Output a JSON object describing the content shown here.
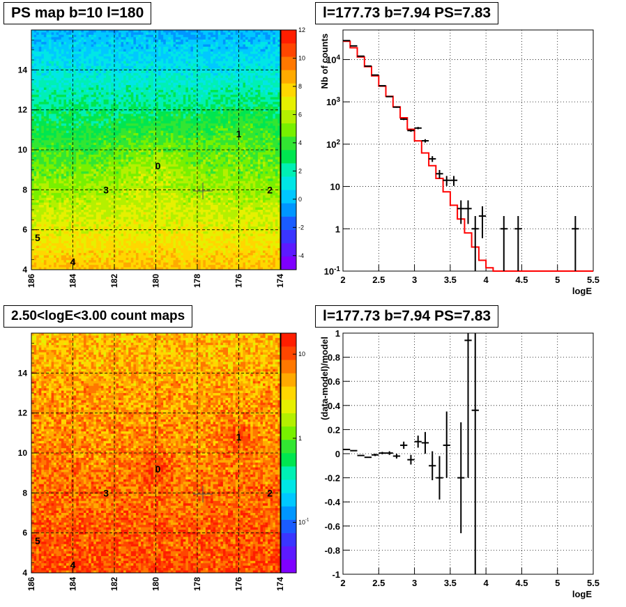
{
  "titles": {
    "ps_map": "PS map b=10 l=180",
    "spectrum": "l=177.73 b=7.94 PS=7.83",
    "count_map": "2.50<logE<3.00 count maps",
    "residual": "l=177.73 b=7.94 PS=7.83"
  },
  "chart_data": [
    {
      "id": "ps_map",
      "type": "heatmap",
      "title": "PS map b=10 l=180",
      "xlim": [
        186,
        174
      ],
      "ylim": [
        4,
        16
      ],
      "x_ticks": [
        "186",
        "184",
        "182",
        "180",
        "178",
        "176",
        "174"
      ],
      "y_ticks": [
        "4",
        "6",
        "8",
        "10",
        "12",
        "14"
      ],
      "colorbar_ticks": [
        "-4",
        "-2",
        "0",
        "2",
        "4",
        "6",
        "8",
        "10",
        "12"
      ],
      "colorbar_range": [
        -5,
        12
      ],
      "grid": true,
      "sources": [
        {
          "label": "0",
          "l": 179.9,
          "b": 9.2
        },
        {
          "label": "1",
          "l": 176.0,
          "b": 10.8
        },
        {
          "label": "2",
          "l": 174.5,
          "b": 8.0
        },
        {
          "label": "3",
          "l": 182.4,
          "b": 8.0
        },
        {
          "label": "4",
          "l": 184.0,
          "b": 4.4
        },
        {
          "label": "5",
          "l": 185.7,
          "b": 5.6
        }
      ],
      "marker": {
        "l": 177.73,
        "b": 7.94
      }
    },
    {
      "id": "spectrum",
      "type": "line",
      "title": "l=177.73 b=7.94 PS=7.83",
      "xlabel": "logE",
      "ylabel": "Nb of counts",
      "xlim": [
        2,
        5.5
      ],
      "ylim": [
        0.1,
        50000
      ],
      "yscale": "log",
      "grid": true,
      "x_ticks": [
        "2",
        "2.5",
        "3",
        "3.5",
        "4",
        "4.5",
        "5",
        "5.5"
      ],
      "y_ticks": [
        {
          "v": 0.1,
          "t": "10",
          "sup": "-1"
        },
        {
          "v": 1,
          "t": "1",
          "sup": ""
        },
        {
          "v": 10,
          "t": "10",
          "sup": ""
        },
        {
          "v": 100,
          "t": "10",
          "sup": "2"
        },
        {
          "v": 1000,
          "t": "10",
          "sup": "3"
        },
        {
          "v": 10000,
          "t": "10",
          "sup": "4"
        }
      ],
      "series": [
        {
          "kind": "model_step",
          "color": "#ff0000",
          "edges": [
            2.0,
            2.1,
            2.2,
            2.3,
            2.4,
            2.5,
            2.6,
            2.7,
            2.8,
            2.9,
            3.0,
            3.1,
            3.2,
            3.3,
            3.4,
            3.5,
            3.6,
            3.7,
            3.8,
            3.9,
            4.0,
            4.1,
            4.2,
            4.3,
            4.4,
            4.5,
            4.6,
            4.7,
            4.8,
            4.9,
            5.0,
            5.1,
            5.2,
            5.3,
            5.4,
            5.5
          ],
          "values": [
            27000,
            19000,
            11500,
            6800,
            4100,
            2350,
            1350,
            760,
            420,
            225,
            120,
            62,
            31,
            15.5,
            7.5,
            3.6,
            1.7,
            0.8,
            0.37,
            0.18,
            0.12,
            0.1,
            0.1,
            0.1,
            0.1,
            0.1,
            0.1,
            0.1,
            0.1,
            0.1,
            0.1,
            0.1,
            0.1,
            0.1,
            0.1
          ]
        },
        {
          "kind": "data",
          "color": "#000000",
          "points": [
            {
              "x": 2.05,
              "y": 28000,
              "lo": 27800,
              "hi": 28200
            },
            {
              "x": 2.15,
              "y": 21000,
              "lo": 20800,
              "hi": 21200
            },
            {
              "x": 2.25,
              "y": 12000,
              "lo": 11800,
              "hi": 12200
            },
            {
              "x": 2.35,
              "y": 7000,
              "lo": 6900,
              "hi": 7100
            },
            {
              "x": 2.45,
              "y": 4300,
              "lo": 4230,
              "hi": 4370
            },
            {
              "x": 2.55,
              "y": 2400,
              "lo": 2350,
              "hi": 2450
            },
            {
              "x": 2.65,
              "y": 1330,
              "lo": 1295,
              "hi": 1365
            },
            {
              "x": 2.75,
              "y": 750,
              "lo": 725,
              "hi": 775
            },
            {
              "x": 2.85,
              "y": 390,
              "lo": 370,
              "hi": 410
            },
            {
              "x": 2.95,
              "y": 210,
              "lo": 196,
              "hi": 224
            },
            {
              "x": 3.05,
              "y": 240,
              "lo": 225,
              "hi": 255
            },
            {
              "x": 3.15,
              "y": 120,
              "lo": 109,
              "hi": 131
            },
            {
              "x": 3.25,
              "y": 45,
              "lo": 38,
              "hi": 52
            },
            {
              "x": 3.35,
              "y": 20,
              "lo": 15.5,
              "hi": 24.5
            },
            {
              "x": 3.45,
              "y": 14,
              "lo": 10.3,
              "hi": 17.7
            },
            {
              "x": 3.55,
              "y": 14,
              "lo": 10.3,
              "hi": 17.7
            },
            {
              "x": 3.65,
              "y": 3,
              "lo": 1.3,
              "hi": 4.7
            },
            {
              "x": 3.75,
              "y": 3,
              "lo": 1.3,
              "hi": 4.7
            },
            {
              "x": 3.85,
              "y": 1,
              "lo": 0.1,
              "hi": 2
            },
            {
              "x": 3.95,
              "y": 2,
              "lo": 0.6,
              "hi": 3.4
            },
            {
              "x": 4.25,
              "y": 1,
              "lo": 0.1,
              "hi": 2
            },
            {
              "x": 4.45,
              "y": 1,
              "lo": 0.1,
              "hi": 2
            },
            {
              "x": 5.25,
              "y": 1,
              "lo": 0.1,
              "hi": 2
            }
          ]
        }
      ]
    },
    {
      "id": "count_map",
      "type": "heatmap",
      "title": "2.50<logE<3.00 count maps",
      "xlim": [
        186,
        174
      ],
      "ylim": [
        4,
        16
      ],
      "x_ticks": [
        "186",
        "184",
        "182",
        "180",
        "178",
        "176",
        "174"
      ],
      "y_ticks": [
        "4",
        "6",
        "8",
        "10",
        "12",
        "14"
      ],
      "colorbar_ticks": [
        {
          "t": "10",
          "sup": "-1",
          "v": 0.1
        },
        {
          "t": "1",
          "sup": "",
          "v": 1
        },
        {
          "t": "10",
          "sup": "",
          "v": 10
        }
      ],
      "colorbar_scale": "log",
      "grid": true,
      "sources": [
        {
          "label": "0",
          "l": 179.9,
          "b": 9.2
        },
        {
          "label": "1",
          "l": 176.0,
          "b": 10.8
        },
        {
          "label": "2",
          "l": 174.5,
          "b": 8.0
        },
        {
          "label": "3",
          "l": 182.4,
          "b": 8.0
        },
        {
          "label": "4",
          "l": 184.0,
          "b": 4.4
        },
        {
          "label": "5",
          "l": 185.7,
          "b": 5.6
        }
      ],
      "marker": {
        "l": 177.73,
        "b": 7.94
      }
    },
    {
      "id": "residual",
      "type": "scatter",
      "title": "l=177.73 b=7.94 PS=7.83",
      "xlabel": "logE",
      "ylabel": "(data-model)/model",
      "xlim": [
        2,
        5.5
      ],
      "ylim": [
        -1,
        1
      ],
      "grid": true,
      "x_ticks": [
        "2",
        "2.5",
        "3",
        "3.5",
        "4",
        "4.5",
        "5",
        "5.5"
      ],
      "y_ticks": [
        "-1",
        "-0.8",
        "-0.6",
        "-0.4",
        "-0.2",
        "0",
        "0.2",
        "0.4",
        "0.6",
        "0.8",
        "1"
      ],
      "points": [
        {
          "x": 2.05,
          "y": 0.035,
          "lo": 0.035,
          "hi": 0.035
        },
        {
          "x": 2.15,
          "y": 0.025,
          "lo": 0.025,
          "hi": 0.025
        },
        {
          "x": 2.25,
          "y": -0.015,
          "lo": -0.015,
          "hi": -0.015
        },
        {
          "x": 2.35,
          "y": -0.03,
          "lo": -0.03,
          "hi": -0.03
        },
        {
          "x": 2.45,
          "y": -0.01,
          "lo": -0.02,
          "hi": 0.0
        },
        {
          "x": 2.55,
          "y": 0.005,
          "lo": -0.005,
          "hi": 0.015
        },
        {
          "x": 2.65,
          "y": 0.005,
          "lo": -0.01,
          "hi": 0.02
        },
        {
          "x": 2.75,
          "y": -0.02,
          "lo": -0.04,
          "hi": 0.0
        },
        {
          "x": 2.85,
          "y": 0.07,
          "lo": 0.04,
          "hi": 0.1
        },
        {
          "x": 2.95,
          "y": -0.05,
          "lo": -0.09,
          "hi": -0.01
        },
        {
          "x": 3.05,
          "y": 0.1,
          "lo": 0.05,
          "hi": 0.15
        },
        {
          "x": 3.15,
          "y": 0.09,
          "lo": 0.0,
          "hi": 0.18
        },
        {
          "x": 3.25,
          "y": -0.1,
          "lo": -0.22,
          "hi": 0.02
        },
        {
          "x": 3.35,
          "y": -0.2,
          "lo": -0.38,
          "hi": -0.02
        },
        {
          "x": 3.45,
          "y": 0.07,
          "lo": -0.2,
          "hi": 0.35
        },
        {
          "x": 3.65,
          "y": -0.2,
          "lo": -0.66,
          "hi": 0.26
        },
        {
          "x": 3.75,
          "y": 0.94,
          "lo": -0.2,
          "hi": 1.0
        },
        {
          "x": 3.85,
          "y": 0.36,
          "lo": -1.0,
          "hi": 1.0
        }
      ]
    }
  ]
}
